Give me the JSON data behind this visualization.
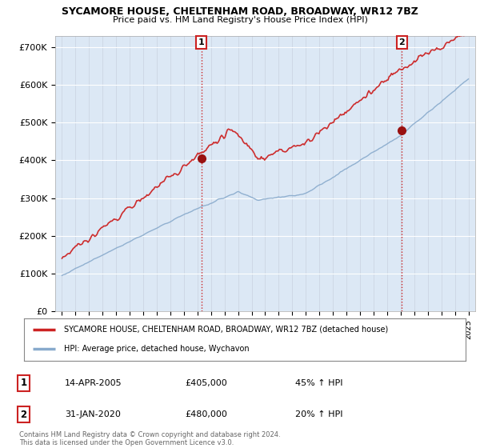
{
  "title": "SYCAMORE HOUSE, CHELTENHAM ROAD, BROADWAY, WR12 7BZ",
  "subtitle": "Price paid vs. HM Land Registry's House Price Index (HPI)",
  "ylabel_ticks": [
    "£0",
    "£100K",
    "£200K",
    "£300K",
    "£400K",
    "£500K",
    "£600K",
    "£700K"
  ],
  "ytick_vals": [
    0,
    100000,
    200000,
    300000,
    400000,
    500000,
    600000,
    700000
  ],
  "ylim": [
    0,
    730000
  ],
  "xlim_start": 1994.5,
  "xlim_end": 2025.5,
  "bg_color": "#ffffff",
  "plot_bg": "#dce8f5",
  "red_color": "#cc2222",
  "blue_color": "#88aacc",
  "marker1_x": 2005.28,
  "marker1_y": 405000,
  "marker2_x": 2020.08,
  "marker2_y": 480000,
  "legend_label_red": "SYCAMORE HOUSE, CHELTENHAM ROAD, BROADWAY, WR12 7BZ (detached house)",
  "legend_label_blue": "HPI: Average price, detached house, Wychavon",
  "sale1_date": "14-APR-2005",
  "sale1_price": "£405,000",
  "sale1_hpi": "45% ↑ HPI",
  "sale2_date": "31-JAN-2020",
  "sale2_price": "£480,000",
  "sale2_hpi": "20% ↑ HPI",
  "footer": "Contains HM Land Registry data © Crown copyright and database right 2024.\nThis data is licensed under the Open Government Licence v3.0."
}
